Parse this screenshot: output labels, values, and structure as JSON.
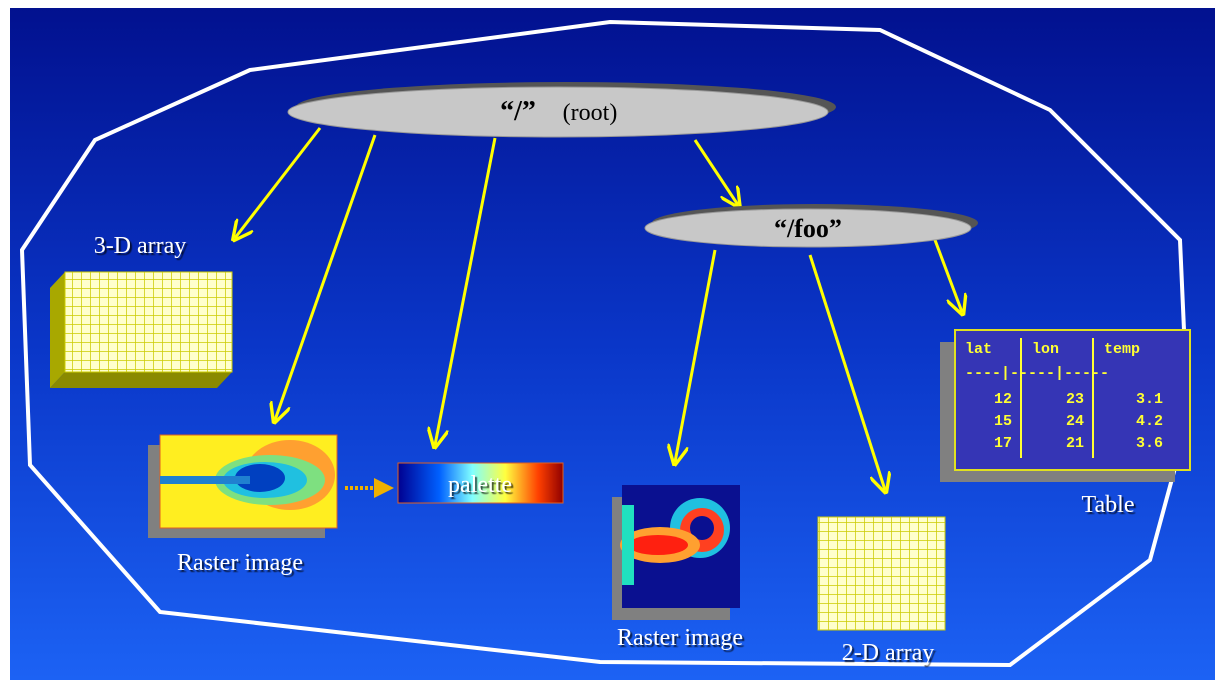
{
  "root": {
    "label": "“/”",
    "note": "(root)"
  },
  "foo": {
    "label": "“/foo”"
  },
  "nodes": [
    {
      "label": "3-D array"
    },
    {
      "label": "Raster image"
    },
    {
      "label": "palette"
    },
    {
      "label": "Raster image"
    },
    {
      "label": "2-D array"
    },
    {
      "label": "Table"
    }
  ],
  "table": {
    "header": [
      "lat",
      "lon",
      "temp"
    ],
    "separator": "----|-----|-----",
    "rows": [
      [
        12,
        23,
        3.1
      ],
      [
        15,
        24,
        4.2
      ],
      [
        17,
        21,
        3.6
      ]
    ]
  }
}
